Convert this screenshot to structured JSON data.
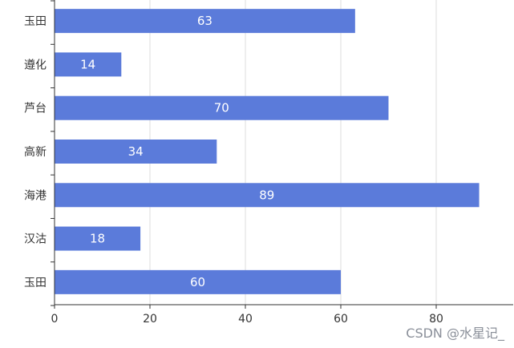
{
  "chart_data": {
    "type": "bar",
    "orientation": "horizontal",
    "categories": [
      "玉田",
      "遵化",
      "芦台",
      "高新",
      "海港",
      "汉沽",
      "玉田"
    ],
    "values": [
      63,
      14,
      70,
      34,
      89,
      18,
      60
    ],
    "xlim": [
      0,
      95
    ],
    "xticks": [
      0,
      20,
      40,
      60,
      80
    ],
    "grid": "vertical",
    "bar_color": "#5b7bda",
    "data_labels": "inside-center"
  },
  "watermark": "CSDN @水星记_"
}
